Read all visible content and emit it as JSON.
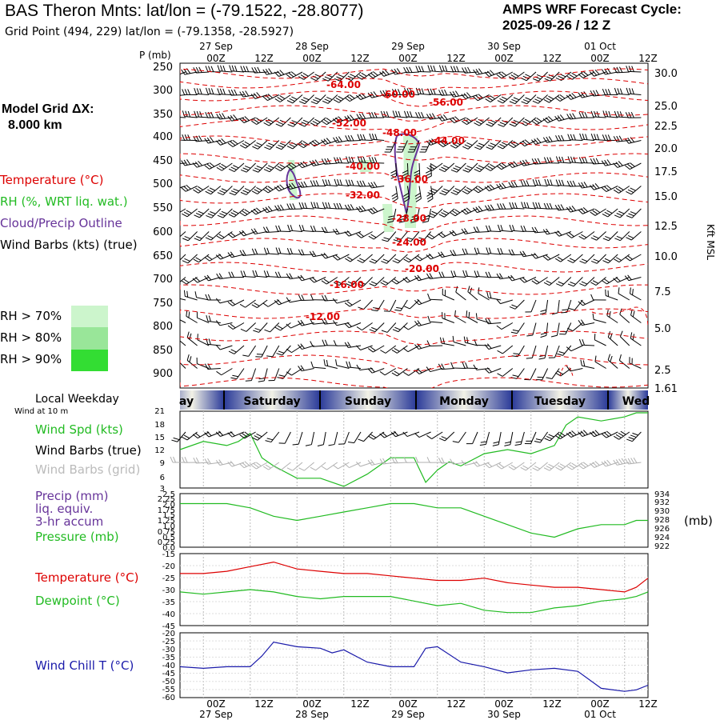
{
  "header": {
    "title": "BAS Theron Mnts:  lat/lon = (-79.1522, -28.8077)",
    "grid_point": "Grid Point (494, 229) lat/lon = (-79.1358, -28.5927)",
    "cycle_line1": "AMPS WRF Forecast Cycle:",
    "cycle_line2": "2025-09-26 / 12  Z"
  },
  "model_grid": {
    "label": "Model Grid ΔX:",
    "value": "8.000 km"
  },
  "legend": {
    "temperature": "Temperature (°C)",
    "rh": "RH (%, WRT liq. wat.)",
    "cloud": "Cloud/Precip Outline",
    "wind_barbs": "Wind Barbs (kts) (true)",
    "rh70": "RH > 70%",
    "rh80": "RH > 80%",
    "rh90": "RH > 90%"
  },
  "colors": {
    "temp": "#dd0000",
    "rh": "#22bb22",
    "cloud": "#663399",
    "chill": "#1a1aaa",
    "rh70": "#ccf5cc",
    "rh80": "#99e699",
    "rh90": "#33dd33"
  },
  "time_axis": {
    "top_dates": [
      "27 Sep",
      "28 Sep",
      "29 Sep",
      "30 Sep",
      "01 Oct"
    ],
    "hours": [
      "00Z",
      "12Z",
      "00Z",
      "12Z",
      "00Z",
      "12Z",
      "00Z",
      "12Z",
      "00Z",
      "12Z"
    ],
    "weekday_label": "Local Weekday",
    "weekdays": [
      "ay",
      "Saturday",
      "Sunday",
      "Monday",
      "Tuesday",
      "Wed"
    ]
  },
  "sounding": {
    "p_label": "P (mb)",
    "kft_label": "Kft MSL",
    "pressure_ticks": [
      "250",
      "300",
      "350",
      "400",
      "450",
      "500",
      "550",
      "600",
      "650",
      "700",
      "750",
      "800",
      "850",
      "900"
    ],
    "height_ticks": [
      "30.0",
      "25.0",
      "22.5",
      "20.0",
      "17.5",
      "15.0",
      "12.5",
      "10.0",
      "7.5",
      "5.0",
      "2.5",
      "1.61"
    ],
    "isotherm_labels": [
      "-64.00",
      "-60.00",
      "-56.00",
      "-52.00",
      "-48.00",
      "-44.00",
      "-40.00",
      "-36.00",
      "-32.00",
      "-28.00",
      "-24.00",
      "-20.00",
      "-16.00",
      "-12.00"
    ]
  },
  "panels": {
    "wind_label_top": "Wind at 10 m",
    "wind_spd": "Wind Spd (kts)",
    "wind_barbs_true": "Wind Barbs (true)",
    "wind_barbs_grid": "Wind Barbs (grid)",
    "precip_1": "Precip (mm)",
    "precip_2": "liq. equiv.",
    "precip_3": "3-hr accum",
    "pressure": "Pressure (mb)",
    "pressure_unit": "(mb)",
    "temperature": "Temperature (°C)",
    "dewpoint": "Dewpoint (°C)",
    "wind_chill": "Wind Chill T (°C)"
  },
  "chart_data": [
    {
      "type": "line",
      "title": "Wind Spd (kts)",
      "x_hours": [
        0,
        6,
        12,
        15,
        18,
        21,
        24,
        30,
        36,
        42,
        48,
        54,
        60,
        63,
        66,
        69,
        72,
        78,
        84,
        90,
        96,
        99,
        102,
        108,
        114,
        117,
        120
      ],
      "values": [
        12,
        14,
        13,
        14,
        16,
        10,
        8,
        5,
        5,
        3,
        6,
        10,
        10,
        4,
        7,
        9,
        8,
        11,
        12,
        11,
        13,
        18,
        20,
        19,
        20,
        21,
        21
      ],
      "ylim": [
        3,
        21
      ],
      "y_ticks": [
        "3",
        "6",
        "9",
        "12",
        "15",
        "18",
        "21"
      ]
    },
    {
      "type": "line",
      "title": "Pressure (mb)",
      "x_hours": [
        0,
        6,
        12,
        18,
        24,
        30,
        36,
        42,
        48,
        54,
        60,
        66,
        72,
        78,
        84,
        90,
        96,
        102,
        108,
        114,
        117,
        120
      ],
      "values": [
        932,
        932,
        932,
        931,
        929,
        928,
        929,
        930,
        931,
        932,
        932,
        931,
        931,
        929,
        927,
        925,
        924,
        926,
        927,
        927,
        928,
        928
      ],
      "ylim": [
        922,
        934
      ],
      "y_ticks_left": [
        "0.0",
        "0.25",
        "0.5",
        "0.75",
        "1.0",
        "1.25",
        "1.5",
        "1.75",
        "2.0",
        "2.25",
        "2.5"
      ],
      "y_ticks_right": [
        "922",
        "924",
        "926",
        "928",
        "930",
        "932",
        "934"
      ],
      "precip_values": [
        0,
        0,
        0,
        0,
        0,
        0,
        0,
        0,
        0,
        0,
        0,
        0,
        0,
        0,
        0,
        0,
        0,
        0,
        0,
        0,
        0,
        0
      ]
    },
    {
      "type": "line",
      "title": "Temperature / Dewpoint (°C)",
      "series": [
        {
          "name": "Temperature",
          "x_hours": [
            0,
            6,
            12,
            18,
            24,
            30,
            36,
            42,
            48,
            54,
            60,
            66,
            72,
            78,
            84,
            90,
            96,
            102,
            108,
            114,
            117,
            120
          ],
          "values": [
            -23,
            -23,
            -22,
            -20,
            -18,
            -21,
            -22,
            -23,
            -23,
            -24,
            -25,
            -26,
            -26,
            -25,
            -27,
            -28,
            -29,
            -29,
            -30,
            -31,
            -29,
            -25
          ]
        },
        {
          "name": "Dewpoint",
          "x_hours": [
            0,
            6,
            12,
            18,
            24,
            30,
            36,
            42,
            48,
            54,
            60,
            66,
            72,
            78,
            84,
            90,
            96,
            102,
            108,
            114,
            117,
            120
          ],
          "values": [
            -31,
            -32,
            -31,
            -30,
            -31,
            -33,
            -34,
            -33,
            -33,
            -33,
            -35,
            -37,
            -36,
            -39,
            -40,
            -40,
            -38,
            -37,
            -35,
            -34,
            -33,
            -31
          ]
        }
      ],
      "ylim": [
        -45,
        -15
      ],
      "y_ticks": [
        "-45",
        "-40",
        "-35",
        "-30",
        "-25",
        "-20",
        "-15"
      ]
    },
    {
      "type": "line",
      "title": "Wind Chill T (°C)",
      "x_hours": [
        0,
        6,
        12,
        18,
        21,
        24,
        30,
        36,
        39,
        42,
        48,
        54,
        60,
        63,
        66,
        72,
        78,
        84,
        90,
        96,
        102,
        108,
        114,
        117,
        120
      ],
      "values": [
        -41,
        -42,
        -41,
        -41,
        -34,
        -25,
        -28,
        -29,
        -32,
        -30,
        -38,
        -41,
        -41,
        -29,
        -28,
        -38,
        -41,
        -45,
        -43,
        -42,
        -44,
        -55,
        -57,
        -56,
        -53
      ],
      "ylim": [
        -60,
        -20
      ],
      "y_ticks": [
        "-60",
        "-55",
        "-50",
        "-45",
        "-40",
        "-35",
        "-30",
        "-25",
        "-20"
      ]
    }
  ]
}
